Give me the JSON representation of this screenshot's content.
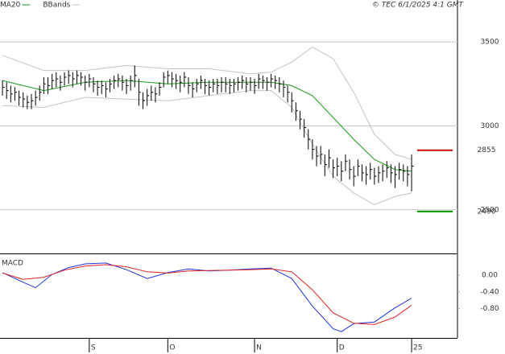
{
  "chart_data": [
    {
      "type": "ohlc",
      "source": "© TEC 6/1/2025 4:1 GMT",
      "xlim": [
        -0.6,
        110.1
      ],
      "ylim": [
        2240,
        3750
      ],
      "yticks": [
        2500,
        3000,
        3500
      ],
      "grid": true,
      "bar_color": "#000000",
      "high": [
        3270,
        3260,
        3240,
        3230,
        3210,
        3200,
        3180,
        3190,
        3210,
        3240,
        3290,
        3290,
        3310,
        3320,
        3300,
        3320,
        3330,
        3320,
        3330,
        3320,
        3300,
        3310,
        3290,
        3270,
        3270,
        3260,
        3280,
        3300,
        3310,
        3300,
        3280,
        3300,
        3360,
        3280,
        3200,
        3220,
        3240,
        3230,
        3260,
        3320,
        3330,
        3320,
        3310,
        3300,
        3320,
        3290,
        3260,
        3280,
        3300,
        3280,
        3270,
        3280,
        3280,
        3290,
        3290,
        3280,
        3280,
        3290,
        3300,
        3290,
        3290,
        3280,
        3310,
        3300,
        3290,
        3310,
        3300,
        3290,
        3270,
        3240,
        3200,
        3140,
        3090,
        3040,
        2980,
        2920,
        2880,
        2880,
        2830,
        2860,
        2800,
        2810,
        2790,
        2830,
        2800,
        2760,
        2800,
        2770,
        2760,
        2780,
        2750,
        2760,
        2770,
        2790,
        2770,
        2760,
        2780,
        2770,
        2760,
        2830
      ],
      "low": [
        3180,
        3160,
        3140,
        3150,
        3120,
        3110,
        3100,
        3100,
        3120,
        3150,
        3190,
        3190,
        3220,
        3230,
        3210,
        3240,
        3250,
        3230,
        3250,
        3240,
        3210,
        3230,
        3200,
        3180,
        3190,
        3170,
        3200,
        3220,
        3230,
        3210,
        3190,
        3210,
        3230,
        3120,
        3100,
        3120,
        3150,
        3140,
        3180,
        3230,
        3250,
        3230,
        3220,
        3200,
        3230,
        3190,
        3170,
        3200,
        3220,
        3190,
        3180,
        3200,
        3190,
        3200,
        3200,
        3190,
        3200,
        3210,
        3220,
        3200,
        3210,
        3190,
        3220,
        3220,
        3210,
        3230,
        3220,
        3200,
        3170,
        3140,
        3080,
        3030,
        2980,
        2930,
        2860,
        2800,
        2760,
        2770,
        2700,
        2750,
        2690,
        2700,
        2670,
        2730,
        2680,
        2640,
        2700,
        2670,
        2650,
        2680,
        2650,
        2660,
        2670,
        2690,
        2660,
        2630,
        2680,
        2670,
        2640,
        2610
      ],
      "close": [
        3230,
        3210,
        3190,
        3200,
        3170,
        3160,
        3140,
        3150,
        3170,
        3200,
        3250,
        3240,
        3270,
        3280,
        3260,
        3290,
        3300,
        3280,
        3300,
        3290,
        3260,
        3280,
        3250,
        3230,
        3240,
        3220,
        3250,
        3270,
        3280,
        3260,
        3240,
        3270,
        3300,
        3200,
        3150,
        3180,
        3200,
        3190,
        3230,
        3290,
        3300,
        3280,
        3270,
        3260,
        3290,
        3240,
        3220,
        3250,
        3270,
        3240,
        3230,
        3250,
        3240,
        3260,
        3250,
        3240,
        3250,
        3260,
        3270,
        3250,
        3260,
        3240,
        3280,
        3270,
        3260,
        3280,
        3270,
        3250,
        3230,
        3200,
        3150,
        3090,
        3040,
        2990,
        2920,
        2860,
        2820,
        2830,
        2770,
        2810,
        2750,
        2760,
        2730,
        2790,
        2740,
        2700,
        2760,
        2720,
        2710,
        2740,
        2700,
        2720,
        2730,
        2750,
        2720,
        2710,
        2740,
        2730,
        2710,
        2760
      ],
      "series": [
        {
          "name": "MA20",
          "color": "#1a9a1a",
          "x": [
            0,
            10,
            20,
            30,
            40,
            50,
            60,
            65,
            70,
            75,
            80,
            85,
            90,
            95,
            99
          ],
          "values": [
            3270,
            3210,
            3260,
            3270,
            3250,
            3260,
            3260,
            3260,
            3240,
            3180,
            3050,
            2920,
            2800,
            2740,
            2730
          ]
        },
        {
          "name": "BBands",
          "color": "#c4c4c4",
          "x": [
            0,
            10,
            20,
            30,
            40,
            50,
            60,
            65,
            70,
            75,
            80,
            85,
            90,
            95,
            99
          ],
          "upper": [
            3420,
            3330,
            3330,
            3360,
            3340,
            3340,
            3310,
            3320,
            3380,
            3470,
            3400,
            3200,
            2950,
            2830,
            2800
          ],
          "lower": [
            3120,
            3110,
            3170,
            3160,
            3150,
            3180,
            3210,
            3210,
            3110,
            2890,
            2700,
            2600,
            2530,
            2580,
            2600
          ]
        }
      ],
      "levels": [
        {
          "value": 2855,
          "color": "#cc0000"
        },
        {
          "value": 2490,
          "color": "#009900"
        }
      ]
    },
    {
      "type": "line",
      "title": "MACD",
      "xlim": [
        -0.6,
        110.1
      ],
      "ylim": [
        -1.5,
        0.5
      ],
      "yticks": [
        {
          "value": 0,
          "label": "0.00"
        },
        {
          "value": -0.4,
          "label": "-0.40"
        },
        {
          "value": -0.8,
          "label": "-0.80"
        }
      ],
      "xticks": [
        {
          "value": 21,
          "label": "S"
        },
        {
          "value": 40,
          "label": "O"
        },
        {
          "value": 61,
          "label": "N"
        },
        {
          "value": 81,
          "label": "D"
        },
        {
          "value": 99,
          "label": "25"
        }
      ],
      "series": [
        {
          "color": "#2233dd",
          "x": [
            0,
            5,
            8,
            12,
            16,
            20,
            25,
            30,
            35,
            40,
            45,
            50,
            55,
            60,
            65,
            70,
            75,
            80,
            82,
            85,
            90,
            95,
            99
          ],
          "values": [
            0.06,
            -0.17,
            -0.3,
            0.02,
            0.18,
            0.27,
            0.29,
            0.13,
            -0.08,
            0.06,
            0.15,
            0.1,
            0.12,
            0.15,
            0.17,
            -0.08,
            -0.74,
            -1.28,
            -1.35,
            -1.16,
            -1.12,
            -0.78,
            -0.55
          ]
        },
        {
          "color": "#dd2222",
          "x": [
            0,
            5,
            10,
            15,
            20,
            25,
            30,
            35,
            40,
            45,
            50,
            55,
            60,
            65,
            70,
            75,
            80,
            85,
            90,
            95,
            99
          ],
          "values": [
            0.05,
            -0.1,
            -0.05,
            0.12,
            0.22,
            0.25,
            0.2,
            0.08,
            0.05,
            0.1,
            0.11,
            0.12,
            0.13,
            0.15,
            0.08,
            -0.35,
            -0.9,
            -1.15,
            -1.18,
            -1,
            -0.72
          ]
        }
      ]
    }
  ]
}
